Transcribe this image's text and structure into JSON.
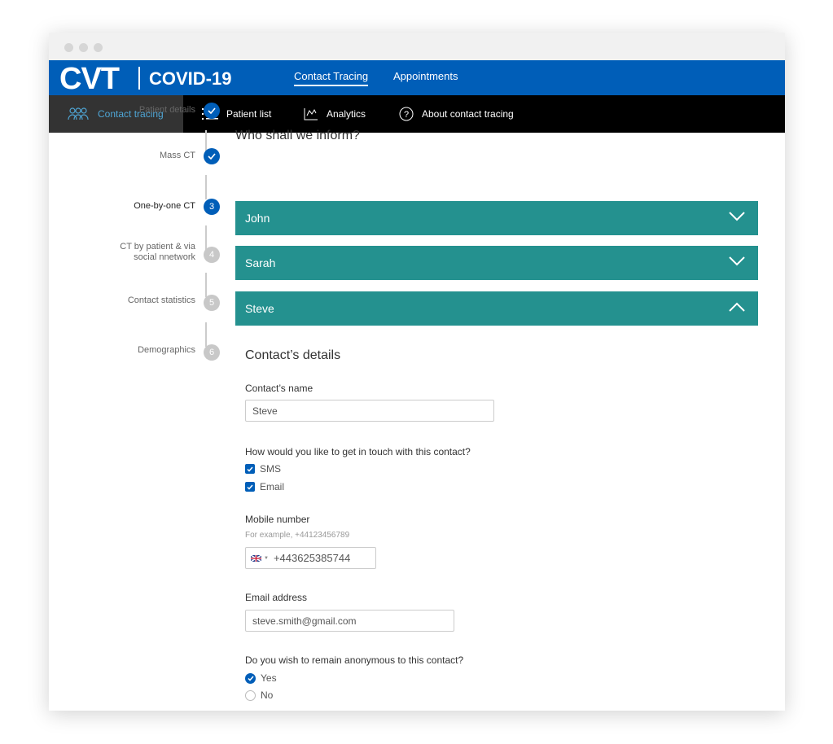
{
  "brand": {
    "logo": "CVT",
    "product": "COVID-19"
  },
  "top_nav": [
    {
      "label": "Contact Tracing",
      "active": true
    },
    {
      "label": "Appointments",
      "active": false
    }
  ],
  "sub_nav": [
    {
      "label": "Contact tracing",
      "icon": "people-icon",
      "active": true
    },
    {
      "label": "Patient list",
      "icon": "list-icon"
    },
    {
      "label": "Analytics",
      "icon": "chart-icon"
    },
    {
      "label": "About contact tracing",
      "icon": "help-icon"
    }
  ],
  "steps": [
    {
      "label": "Patient details",
      "state": "done"
    },
    {
      "label": "Mass CT",
      "state": "done"
    },
    {
      "label": "One-by-one CT",
      "number": "3",
      "state": "current"
    },
    {
      "label": "CT by patient & via social nnetwork",
      "number": "4",
      "state": "todo"
    },
    {
      "label": "Contact statistics",
      "number": "5",
      "state": "todo"
    },
    {
      "label": "Demographics",
      "number": "6",
      "state": "todo"
    }
  ],
  "main": {
    "heading": "Who shall we inform?",
    "contacts": [
      {
        "name": "John",
        "expanded": false
      },
      {
        "name": "Sarah",
        "expanded": false
      },
      {
        "name": "Steve",
        "expanded": true
      }
    ],
    "details": {
      "title": "Contact’s details",
      "name_label": "Contact’s name",
      "name_value": "Steve",
      "contact_question": "How would you like to get in touch with this contact?",
      "methods": [
        {
          "label": "SMS",
          "checked": true
        },
        {
          "label": "Email",
          "checked": true
        }
      ],
      "mobile_label": "Mobile number",
      "mobile_hint": "For example, +44123456789",
      "mobile_value": "+443625385744",
      "email_label": "Email address",
      "email_value": "steve.smith@gmail.com",
      "anon_question": "Do you wish to remain anonymous to this contact?",
      "anon_options": [
        {
          "label": "Yes",
          "selected": true
        },
        {
          "label": "No",
          "selected": false
        }
      ]
    }
  },
  "colors": {
    "primary": "#005eb8",
    "accordion": "#24918f",
    "nav": "#000000"
  }
}
